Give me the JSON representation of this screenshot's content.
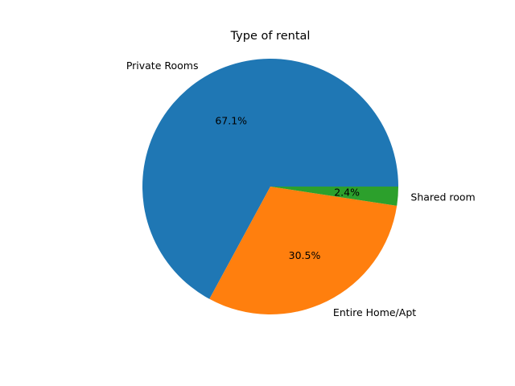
{
  "chart_data": {
    "type": "pie",
    "title": "Type of rental",
    "categories": [
      "Private Rooms",
      "Entire Home/Apt",
      "Shared room"
    ],
    "values": [
      67.1,
      30.5,
      2.4
    ],
    "percent_labels": [
      "67.1%",
      "30.5%",
      "2.4%"
    ],
    "colors": [
      "#1f77b4",
      "#ff7f0e",
      "#2ca02c"
    ],
    "start_angle_deg": 0,
    "direction": "counterclockwise",
    "legend": "none"
  }
}
